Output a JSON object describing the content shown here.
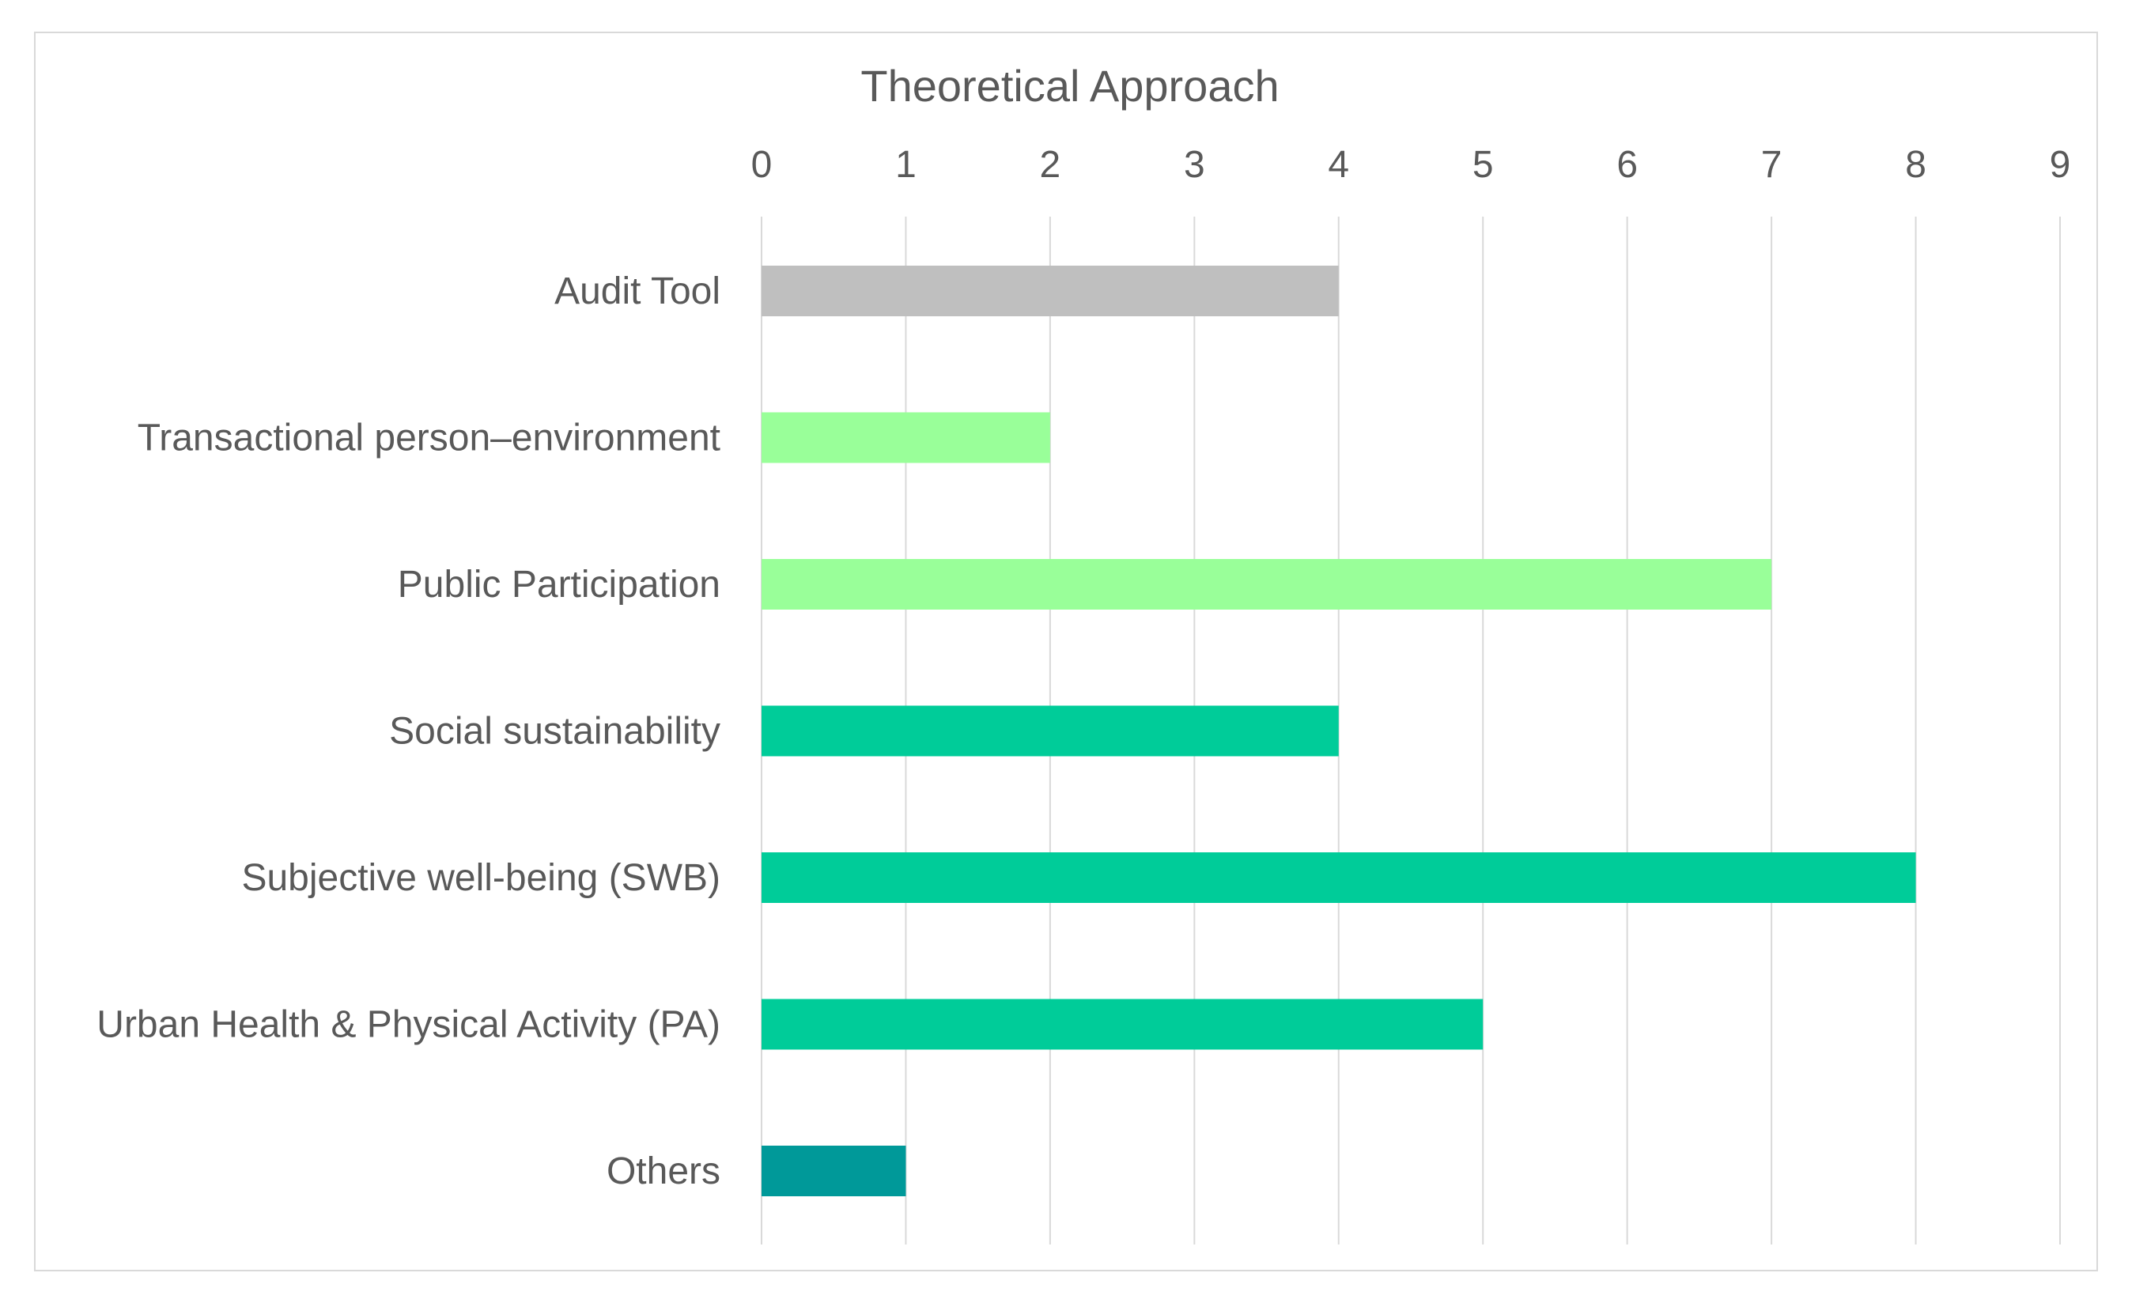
{
  "chart_data": {
    "type": "bar",
    "orientation": "horizontal",
    "title": "Theoretical Approach",
    "xlabel": "",
    "ylabel": "",
    "xlim": [
      0,
      9
    ],
    "x_ticks": [
      "0",
      "1",
      "2",
      "3",
      "4",
      "5",
      "6",
      "7",
      "8",
      "9"
    ],
    "x_axis_position": "top",
    "grid": true,
    "legend": "none",
    "categories": [
      "Audit Tool",
      "Transactional person–environment",
      "Public Participation",
      "Social sustainability",
      "Subjective well-being (SWB)",
      "Urban Health & Physical Activity (PA)",
      "Others"
    ],
    "values": [
      4,
      2,
      7,
      4,
      8,
      5,
      1
    ],
    "bar_colors": [
      "#bfbfbf",
      "#99ff99",
      "#99ff99",
      "#00cc99",
      "#00cc99",
      "#00cc99",
      "#009999"
    ]
  },
  "colors": {
    "text": "#595959",
    "gridline": "#d9d9d9",
    "frame": "#d9d9d9"
  }
}
